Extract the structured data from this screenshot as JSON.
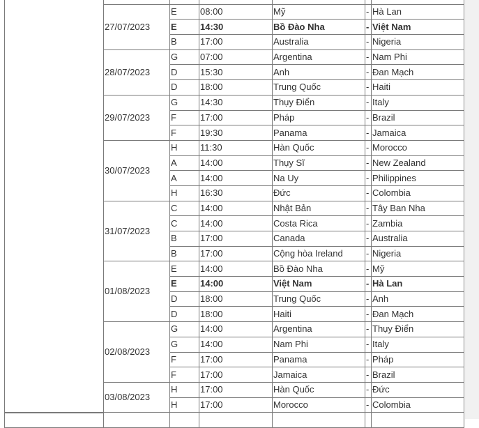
{
  "schedule": {
    "separator": "-",
    "days": [
      {
        "date": "27/07/2023",
        "matches": [
          {
            "group": "E",
            "time": "08:00",
            "team1": "Mỹ",
            "team2": "Hà Lan",
            "bold": false
          },
          {
            "group": "E",
            "time": "14:30",
            "team1": "Bồ Đào Nha",
            "team2": "Việt Nam",
            "bold": true
          },
          {
            "group": "B",
            "time": "17:00",
            "team1": "Australia",
            "team2": "Nigeria",
            "bold": false
          }
        ]
      },
      {
        "date": "28/07/2023",
        "matches": [
          {
            "group": "G",
            "time": "07:00",
            "team1": "Argentina",
            "team2": "Nam Phi",
            "bold": false
          },
          {
            "group": "D",
            "time": "15:30",
            "team1": "Anh",
            "team2": "Đan Mạch",
            "bold": false
          },
          {
            "group": "D",
            "time": "18:00",
            "team1": "Trung Quốc",
            "team2": "Haiti",
            "bold": false
          }
        ]
      },
      {
        "date": "29/07/2023",
        "matches": [
          {
            "group": "G",
            "time": "14:30",
            "team1": "Thụy Điển",
            "team2": "Italy",
            "bold": false
          },
          {
            "group": "F",
            "time": "17:00",
            "team1": "Pháp",
            "team2": "Brazil",
            "bold": false
          },
          {
            "group": "F",
            "time": "19:30",
            "team1": "Panama",
            "team2": "Jamaica",
            "bold": false
          }
        ]
      },
      {
        "date": "30/07/2023",
        "matches": [
          {
            "group": "H",
            "time": "11:30",
            "team1": "Hàn Quốc",
            "team2": "Morocco",
            "bold": false
          },
          {
            "group": "A",
            "time": "14:00",
            "team1": "Thụy Sĩ",
            "team2": "New Zealand",
            "bold": false
          },
          {
            "group": "A",
            "time": "14:00",
            "team1": "Na Uy",
            "team2": "Philippines",
            "bold": false
          },
          {
            "group": "H",
            "time": "16:30",
            "team1": "Đức",
            "team2": "Colombia",
            "bold": false
          }
        ]
      },
      {
        "date": "31/07/2023",
        "matches": [
          {
            "group": "C",
            "time": "14:00",
            "team1": "Nhật Bản",
            "team2": "Tây Ban Nha",
            "bold": false
          },
          {
            "group": "C",
            "time": "14:00",
            "team1": "Costa Rica",
            "team2": "Zambia",
            "bold": false
          },
          {
            "group": "B",
            "time": "17:00",
            "team1": "Canada",
            "team2": "Australia",
            "bold": false
          },
          {
            "group": "B",
            "time": "17:00",
            "team1": "Cộng hòa Ireland",
            "team2": "Nigeria",
            "bold": false
          }
        ]
      },
      {
        "date": "01/08/2023",
        "matches": [
          {
            "group": "E",
            "time": "14:00",
            "team1": "Bồ Đào Nha",
            "team2": "Mỹ",
            "bold": false
          },
          {
            "group": "E",
            "time": "14:00",
            "team1": "Việt Nam",
            "team2": "Hà Lan",
            "bold": true
          },
          {
            "group": "D",
            "time": "18:00",
            "team1": "Trung Quốc",
            "team2": "Anh",
            "bold": false
          },
          {
            "group": "D",
            "time": "18:00",
            "team1": "Haiti",
            "team2": "Đan Mạch",
            "bold": false
          }
        ]
      },
      {
        "date": "02/08/2023",
        "matches": [
          {
            "group": "G",
            "time": "14:00",
            "team1": "Argentina",
            "team2": "Thụy Điển",
            "bold": false
          },
          {
            "group": "G",
            "time": "14:00",
            "team1": "Nam Phi",
            "team2": "Italy",
            "bold": false
          },
          {
            "group": "F",
            "time": "17:00",
            "team1": "Panama",
            "team2": "Pháp",
            "bold": false
          },
          {
            "group": "F",
            "time": "17:00",
            "team1": "Jamaica",
            "team2": "Brazil",
            "bold": false
          }
        ]
      },
      {
        "date": "03/08/2023",
        "matches": [
          {
            "group": "H",
            "time": "17:00",
            "team1": "Hàn Quốc",
            "team2": "Đức",
            "bold": false
          },
          {
            "group": "H",
            "time": "17:00",
            "team1": "Morocco",
            "team2": "Colombia",
            "bold": false
          }
        ]
      }
    ]
  }
}
